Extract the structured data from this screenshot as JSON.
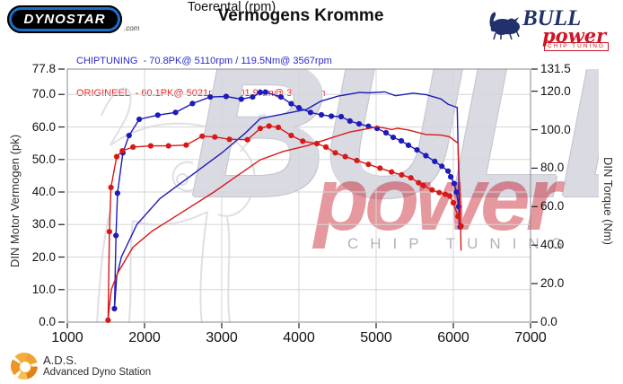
{
  "header": {
    "dynostar": {
      "text": "Dynostar",
      "suffix": ".com"
    },
    "title": "Vermogens Kromme",
    "legend": [
      {
        "text": "CHIPTUNING  - 70.8PK@ 5110rpm / 119.5Nm@ 3567rpm",
        "color": "#2a2acc"
      },
      {
        "text": "ORIGINEEL  - 60.1PK@ 5021rpm / 101.9Nm@ 3613rpm",
        "color": "#ee2222"
      }
    ],
    "bull_logo": {
      "name": "BULL",
      "sub": "power",
      "tagline": "CHIP TUNING"
    }
  },
  "colors": {
    "accent_blue": "#1c1cb8",
    "accent_red": "#d81818",
    "logo_navy": "#22306b",
    "logo_red": "#cc1525",
    "dynostar_blue": "#1a6ec8",
    "ads_orange": "#ec9228",
    "watermark_red": "#c61c28",
    "watermark_gray": "#dadae3"
  },
  "watermark": {
    "big": "BULL",
    "script": "power",
    "tagline": "CHIP TUNING"
  },
  "footer": {
    "abbr": "A.D.S.",
    "name": "Advanced Dyno Station"
  },
  "chart_data": {
    "type": "line",
    "title": "Vermogens Kromme",
    "xlabel": "Toerental (rpm)",
    "ylabel_left": "DIN Motor Vermogen (pk)",
    "ylabel_right": "DIN Torque (Nm)",
    "xlim": [
      1000,
      7000
    ],
    "x_ticks": [
      1000,
      2000,
      3000,
      4000,
      5000,
      6000,
      7000
    ],
    "left_max": 77.8,
    "left_ticks": [
      77.8,
      70,
      60,
      50,
      40,
      30,
      20,
      10,
      0
    ],
    "right_max": 131.5,
    "right_ticks": [
      131.5,
      120,
      100,
      80,
      60,
      40,
      20,
      0
    ],
    "grid": true,
    "legend_position": "top-left",
    "series": [
      {
        "name": "chiptuning_power_pk",
        "axis": "left",
        "color": "#1c1cb8",
        "markers": false,
        "points": [
          [
            1610,
            4
          ],
          [
            1640,
            14
          ],
          [
            1700,
            20
          ],
          [
            1900,
            30
          ],
          [
            2200,
            38
          ],
          [
            2600,
            45
          ],
          [
            3000,
            52
          ],
          [
            3300,
            58
          ],
          [
            3500,
            62.6
          ],
          [
            3800,
            64
          ],
          [
            4100,
            65.4
          ],
          [
            4280,
            67.9
          ],
          [
            4510,
            69.5
          ],
          [
            4780,
            70.6
          ],
          [
            4900,
            70.5
          ],
          [
            5110,
            70.8
          ],
          [
            5250,
            69.6
          ],
          [
            5480,
            70.4
          ],
          [
            5650,
            69.9
          ],
          [
            5840,
            68.6
          ],
          [
            5930,
            67
          ],
          [
            6050,
            66
          ],
          [
            6070,
            45
          ],
          [
            6075,
            30
          ]
        ]
      },
      {
        "name": "chiptuning_torque_nm",
        "axis": "right",
        "color": "#1c1cb8",
        "markers": true,
        "points": [
          [
            1610,
            7
          ],
          [
            1630,
            45
          ],
          [
            1650,
            67
          ],
          [
            1720,
            88
          ],
          [
            1800,
            97
          ],
          [
            1931,
            105.4
          ],
          [
            2172,
            107.6
          ],
          [
            2402,
            109
          ],
          [
            2621,
            113.6
          ],
          [
            2851,
            117
          ],
          [
            3057,
            117.3
          ],
          [
            3253,
            115.9
          ],
          [
            3400,
            117
          ],
          [
            3500,
            119.4
          ],
          [
            3567,
            119.5
          ],
          [
            3767,
            117
          ],
          [
            3900,
            113.5
          ],
          [
            4000,
            111.4
          ],
          [
            4150,
            109
          ],
          [
            4291,
            107.7
          ],
          [
            4420,
            107
          ],
          [
            4547,
            106.8
          ],
          [
            4660,
            104.5
          ],
          [
            4779,
            103
          ],
          [
            4900,
            101.8
          ],
          [
            5012,
            100.7
          ],
          [
            5128,
            98.4
          ],
          [
            5221,
            96
          ],
          [
            5326,
            94.2
          ],
          [
            5419,
            91.9
          ],
          [
            5529,
            89.5
          ],
          [
            5644,
            86.5
          ],
          [
            5759,
            83.5
          ],
          [
            5851,
            81
          ],
          [
            5931,
            78.5
          ],
          [
            5966,
            75.5
          ],
          [
            6010,
            72
          ],
          [
            6040,
            67.5
          ],
          [
            6070,
            60
          ],
          [
            6090,
            49.5
          ]
        ]
      },
      {
        "name": "origineel_power_pk",
        "axis": "left",
        "color": "#d81818",
        "markers": false,
        "points": [
          [
            1528,
            1
          ],
          [
            1570,
            10
          ],
          [
            1650,
            15
          ],
          [
            1850,
            23
          ],
          [
            2100,
            28
          ],
          [
            2500,
            34
          ],
          [
            2900,
            40
          ],
          [
            3200,
            45
          ],
          [
            3500,
            49.9
          ],
          [
            3800,
            52.5
          ],
          [
            4116,
            54.3
          ],
          [
            4400,
            56.5
          ],
          [
            4663,
            58.5
          ],
          [
            4900,
            59.5
          ],
          [
            5021,
            60.1
          ],
          [
            5200,
            59.2
          ],
          [
            5280,
            59.6
          ],
          [
            5414,
            59.1
          ],
          [
            5644,
            57.7
          ],
          [
            5840,
            57.5
          ],
          [
            5950,
            57
          ],
          [
            6060,
            55
          ],
          [
            6090,
            35
          ],
          [
            6100,
            22
          ]
        ]
      },
      {
        "name": "origineel_torque_nm",
        "axis": "right",
        "color": "#d81818",
        "markers": true,
        "points": [
          [
            1528,
            1
          ],
          [
            1545,
            47
          ],
          [
            1565,
            70
          ],
          [
            1640,
            86
          ],
          [
            1713,
            89
          ],
          [
            1851,
            91
          ],
          [
            2080,
            91.6
          ],
          [
            2310,
            91.6
          ],
          [
            2540,
            92
          ],
          [
            2747,
            96.6
          ],
          [
            2910,
            96.2
          ],
          [
            3100,
            95
          ],
          [
            3333,
            94.8
          ],
          [
            3500,
            100.7
          ],
          [
            3613,
            101.9
          ],
          [
            3733,
            101.2
          ],
          [
            3900,
            97
          ],
          [
            4050,
            94
          ],
          [
            4233,
            92.8
          ],
          [
            4350,
            91
          ],
          [
            4471,
            88
          ],
          [
            4600,
            86
          ],
          [
            4750,
            84
          ],
          [
            4900,
            82
          ],
          [
            5050,
            80
          ],
          [
            5200,
            78
          ],
          [
            5330,
            76.5
          ],
          [
            5450,
            75
          ],
          [
            5550,
            72.4
          ],
          [
            5610,
            71
          ],
          [
            5725,
            68.7
          ],
          [
            5817,
            67.3
          ],
          [
            5897,
            66.4
          ],
          [
            5954,
            65.5
          ],
          [
            6000,
            62
          ],
          [
            6060,
            55
          ],
          [
            6100,
            49.9
          ]
        ]
      }
    ]
  }
}
